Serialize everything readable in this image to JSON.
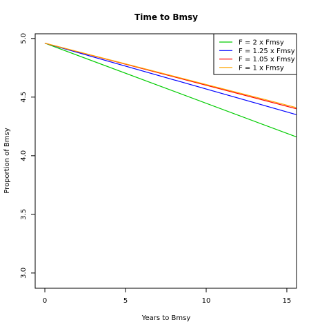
{
  "chart_data": {
    "type": "line",
    "title": "Time to Bmsy",
    "xlabel": "Years to Bmsy",
    "ylabel": "Proportion of Bmsy",
    "xlim": [
      -0.6,
      15.6
    ],
    "ylim": [
      2.87,
      5.04
    ],
    "x_ticks": [
      0,
      5,
      10,
      15
    ],
    "y_ticks": [
      3.0,
      3.5,
      4.0,
      4.5,
      5.0
    ],
    "x_tick_labels": [
      "0",
      "5",
      "10",
      "15"
    ],
    "y_tick_labels": [
      "3.0",
      "3.5",
      "4.0",
      "4.5",
      "5.0"
    ],
    "grid": false,
    "legend_position": "top-right",
    "series": [
      {
        "name": "F = 2 x Fmsy",
        "color": "#00cc00",
        "x": [
          0,
          15.6
        ],
        "y": [
          4.96,
          4.16
        ]
      },
      {
        "name": "F = 1.25 x Fmsy",
        "color": "#0000ff",
        "x": [
          0,
          15.6
        ],
        "y": [
          4.96,
          4.35
        ]
      },
      {
        "name": "F = 1.05 x Fmsy",
        "color": "#ff0000",
        "x": [
          0,
          15.6
        ],
        "y": [
          4.96,
          4.4
        ]
      },
      {
        "name": "F = 1 x Fmsy",
        "color": "#ffa500",
        "x": [
          0,
          15.6
        ],
        "y": [
          4.96,
          4.41
        ]
      }
    ]
  }
}
